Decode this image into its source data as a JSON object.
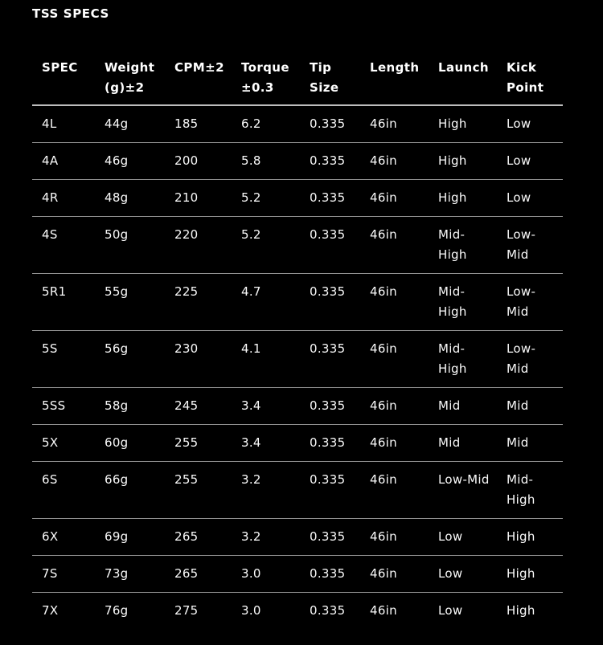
{
  "title": "TSS SPECS",
  "colors": {
    "background": "#000000",
    "text": "#ffffff",
    "header_rule": "#bdbdbd",
    "row_rule": "#909090"
  },
  "table": {
    "columns": [
      {
        "key": "spec",
        "label": "SPEC"
      },
      {
        "key": "weight",
        "label": "Weight\n(g)±2"
      },
      {
        "key": "cpm",
        "label": "CPM±2"
      },
      {
        "key": "torque",
        "label": "Torque\n±0.3"
      },
      {
        "key": "tip",
        "label": "Tip\nSize"
      },
      {
        "key": "length",
        "label": "Length"
      },
      {
        "key": "launch",
        "label": "Launch"
      },
      {
        "key": "kick",
        "label": "Kick\nPoint"
      }
    ],
    "rows": [
      [
        "4L",
        "44g",
        "185",
        "6.2",
        "0.335",
        "46in",
        "High",
        "Low"
      ],
      [
        "4A",
        "46g",
        "200",
        "5.8",
        "0.335",
        "46in",
        "High",
        "Low"
      ],
      [
        "4R",
        "48g",
        "210",
        "5.2",
        "0.335",
        "46in",
        "High",
        "Low"
      ],
      [
        "4S",
        "50g",
        "220",
        "5.2",
        "0.335",
        "46in",
        "Mid-\nHigh",
        "Low-\nMid"
      ],
      [
        "5R1",
        "55g",
        "225",
        "4.7",
        "0.335",
        "46in",
        "Mid-\nHigh",
        "Low-\nMid"
      ],
      [
        "5S",
        "56g",
        "230",
        "4.1",
        "0.335",
        "46in",
        "Mid-\nHigh",
        "Low-\nMid"
      ],
      [
        "5SS",
        "58g",
        "245",
        "3.4",
        "0.335",
        "46in",
        "Mid",
        "Mid"
      ],
      [
        "5X",
        "60g",
        "255",
        "3.4",
        "0.335",
        "46in",
        "Mid",
        "Mid"
      ],
      [
        "6S",
        "66g",
        "255",
        "3.2",
        "0.335",
        "46in",
        "Low-Mid",
        "Mid-\nHigh"
      ],
      [
        "6X",
        "69g",
        "265",
        "3.2",
        "0.335",
        "46in",
        "Low",
        "High"
      ],
      [
        "7S",
        "73g",
        "265",
        "3.0",
        "0.335",
        "46in",
        "Low",
        "High"
      ],
      [
        "7X",
        "76g",
        "275",
        "3.0",
        "0.335",
        "46in",
        "Low",
        "High"
      ]
    ]
  }
}
